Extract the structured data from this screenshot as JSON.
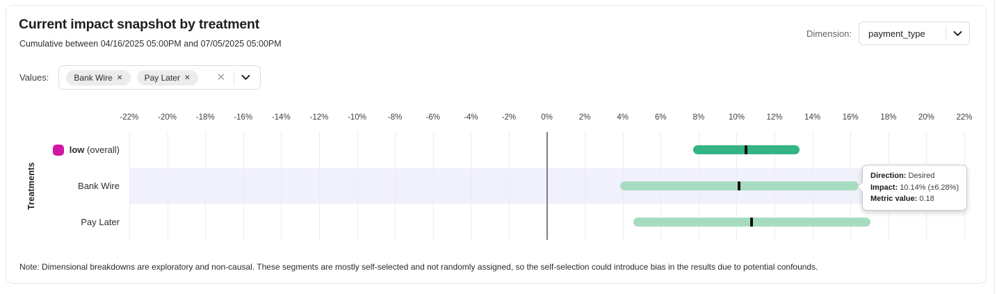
{
  "header": {
    "title": "Current impact snapshot by treatment",
    "subtitle": "Cumulative between 04/16/2025 05:00PM and 07/05/2025 05:00PM",
    "dimension_label": "Dimension:",
    "dimension_value": "payment_type"
  },
  "values_filter": {
    "label": "Values:",
    "chips": [
      {
        "label": "Bank Wire",
        "remove_icon": "✕"
      },
      {
        "label": "Pay Later",
        "remove_icon": "✕"
      }
    ],
    "clear_icon": "✕"
  },
  "chart_data": {
    "type": "bar",
    "orientation": "horizontal-interval",
    "title": "Current impact snapshot by treatment",
    "ylabel": "Treatments",
    "axis": {
      "min": -22,
      "max": 22,
      "step": 2,
      "tick_suffix": "%"
    },
    "grid": true,
    "colors": {
      "gridline": "#ececec",
      "zero_line": "#7d7d7d",
      "row_highlight": "#f0f1fc",
      "marker": "#101010"
    },
    "rows": [
      {
        "label": "low",
        "suffix": "(overall)",
        "impact_pct": 10.5,
        "ci_pct": 2.8,
        "bar_color": "#34b384",
        "swatch_color": "#d118a4",
        "highlighted": false
      },
      {
        "label": "Bank Wire",
        "suffix": "",
        "impact_pct": 10.14,
        "ci_pct": 6.28,
        "bar_color": "#a8dcc1",
        "swatch_color": "",
        "highlighted": true
      },
      {
        "label": "Pay Later",
        "suffix": "",
        "impact_pct": 10.8,
        "ci_pct": 6.25,
        "bar_color": "#a8dcc1",
        "swatch_color": "",
        "highlighted": false
      }
    ]
  },
  "tooltip": {
    "items": [
      {
        "label": "Direction:",
        "value": "Desired"
      },
      {
        "label": "Impact:",
        "value": "10.14% (±6.28%)"
      },
      {
        "label": "Metric value:",
        "value": "0.18"
      }
    ]
  },
  "note": "Note: Dimensional breakdowns are exploratory and non-causal. These segments are mostly self-selected and not randomly assigned, so the self-selection could introduce bias in the results due to potential confounds."
}
